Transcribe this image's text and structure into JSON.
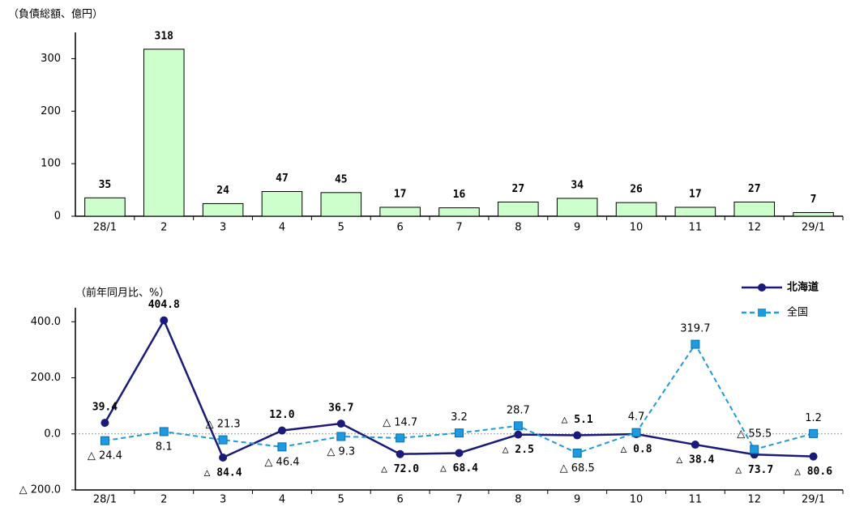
{
  "chart_data": [
    {
      "type": "bar",
      "title": "（負債総額、億円）",
      "categories": [
        "28/1",
        "2",
        "3",
        "4",
        "5",
        "6",
        "7",
        "8",
        "9",
        "10",
        "11",
        "12",
        "29/1"
      ],
      "values": [
        35,
        318,
        24,
        47,
        45,
        17,
        16,
        27,
        34,
        26,
        17,
        27,
        7
      ],
      "color": "#ccffcc",
      "ylim": [
        0,
        350
      ],
      "yticks": [
        0,
        100,
        200,
        300
      ]
    },
    {
      "type": "line",
      "title": "（前年同月比、%）",
      "categories": [
        "28/1",
        "2",
        "3",
        "4",
        "5",
        "6",
        "7",
        "8",
        "9",
        "10",
        "11",
        "12",
        "29/1"
      ],
      "series": [
        {
          "name": "北海道",
          "color": "#1a1a7a",
          "values": [
            39.4,
            404.8,
            -84.4,
            12.0,
            36.7,
            -72.0,
            -68.4,
            -2.5,
            -5.1,
            -0.8,
            -38.4,
            -73.7,
            -80.6
          ],
          "value_labels": [
            "39.4",
            "404.8",
            "△ 84.4",
            "12.0",
            "36.7",
            "△ 72.0",
            "△ 68.4",
            "△ 2.5",
            "△ 5.1",
            "△ 0.8",
            "△ 38.4",
            "△ 73.7",
            "△ 80.6"
          ]
        },
        {
          "name": "全国",
          "color": "#1e9be0",
          "values": [
            -24.4,
            8.1,
            -21.3,
            -46.4,
            -9.3,
            -14.7,
            3.2,
            28.7,
            -68.5,
            4.7,
            319.7,
            -55.5,
            1.2
          ],
          "value_labels": [
            "△ 24.4",
            "8.1",
            "△ 21.3",
            "△ 46.4",
            "△ 9.3",
            "△ 14.7",
            "3.2",
            "28.7",
            "△ 68.5",
            "4.7",
            "319.7",
            "△ 55.5",
            "1.2"
          ]
        }
      ],
      "ylim": [
        -200,
        450
      ],
      "yticks": [
        {
          "value": -200,
          "label": "△ 200.0"
        },
        {
          "value": 0,
          "label": "0.0"
        },
        {
          "value": 200,
          "label": "200.0"
        },
        {
          "value": 400,
          "label": "400.0"
        }
      ],
      "legend": "top-right"
    }
  ]
}
